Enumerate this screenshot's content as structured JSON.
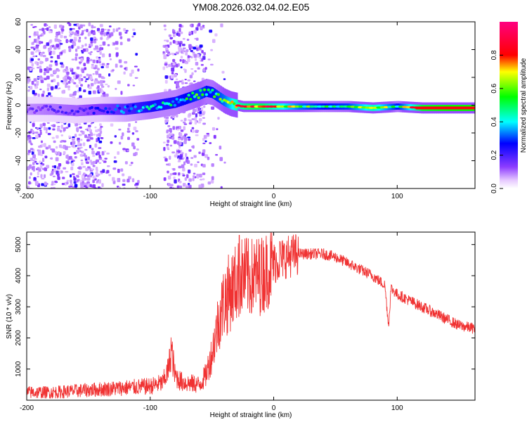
{
  "chart_data": [
    {
      "type": "heatmap",
      "title": "YM08.2026.032.04.02.E05",
      "xlabel": "Height of straight line (km)",
      "ylabel": "Frequency (Hz)",
      "xlim": [
        -200,
        163
      ],
      "ylim": [
        -60,
        60
      ],
      "xticks": [
        -200,
        -100,
        0,
        100
      ],
      "yticks": [
        -60,
        -40,
        -20,
        0,
        20,
        40,
        60
      ],
      "ridge": {
        "x": [
          -200,
          -180,
          -160,
          -140,
          -120,
          -100,
          -80,
          -70,
          -60,
          -55,
          -50,
          -45,
          -40,
          -35,
          -30,
          -25,
          -20,
          -10,
          0,
          20,
          40,
          60,
          80,
          100,
          120,
          140,
          163
        ],
        "freq_hz": [
          -3,
          -3,
          -4,
          -3,
          -3,
          -1,
          2,
          5,
          8,
          10,
          9,
          6,
          3,
          1,
          0,
          -1,
          -1,
          -1,
          -1,
          -1,
          -1,
          -1,
          -2,
          -1,
          -2,
          -2,
          -2
        ],
        "amplitude": [
          0.15,
          0.18,
          0.2,
          0.25,
          0.35,
          0.45,
          0.45,
          0.5,
          0.55,
          0.5,
          0.5,
          0.55,
          0.6,
          0.7,
          0.8,
          0.85,
          0.9,
          0.9,
          0.8,
          0.6,
          0.5,
          0.55,
          0.8,
          0.5,
          0.95,
          1.0,
          1.0
        ]
      },
      "colorbar": {
        "label": "Normalized spectral amplitude",
        "range": [
          0,
          1
        ],
        "ticks": [
          "0.0",
          "0.2",
          "0.4",
          "0.6",
          "0.8"
        ]
      }
    },
    {
      "type": "line",
      "title": "",
      "xlabel": "Height of straight line (km)",
      "ylabel": "SNR (10 * v/v)",
      "xlim": [
        -200,
        163
      ],
      "ylim": [
        0,
        5400
      ],
      "xticks": [
        -200,
        -100,
        0,
        100
      ],
      "yticks": [
        1000,
        2000,
        3000,
        4000,
        5000
      ],
      "color": "#f03232",
      "series": [
        {
          "name": "SNR",
          "x": [
            -200,
            -180,
            -160,
            -140,
            -120,
            -100,
            -90,
            -85,
            -83,
            -80,
            -75,
            -70,
            -60,
            -55,
            -50,
            -45,
            -40,
            -35,
            -30,
            -25,
            -20,
            -15,
            -10,
            -5,
            0,
            10,
            20,
            30,
            40,
            50,
            60,
            70,
            80,
            90,
            93,
            95,
            100,
            110,
            120,
            130,
            140,
            150,
            163
          ],
          "values": [
            250,
            250,
            300,
            350,
            400,
            450,
            550,
            1000,
            1700,
            800,
            600,
            550,
            500,
            800,
            1500,
            2500,
            3200,
            3500,
            3800,
            4000,
            3900,
            4000,
            4000,
            4200,
            4400,
            4600,
            4700,
            4700,
            4700,
            4600,
            4400,
            4200,
            4000,
            3700,
            2400,
            3600,
            3400,
            3200,
            3000,
            2800,
            2600,
            2400,
            2300
          ]
        }
      ],
      "spikes": [
        {
          "x": -28,
          "value": 5300
        },
        {
          "x": -22,
          "value": 5200
        },
        {
          "x": -10,
          "value": 5000
        },
        {
          "x": 5,
          "value": 5100
        }
      ]
    }
  ]
}
